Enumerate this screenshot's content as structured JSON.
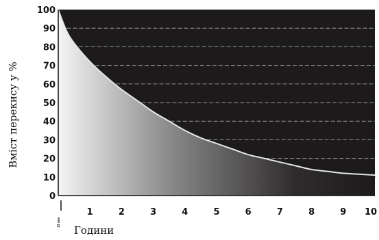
{
  "chart_data": {
    "type": "area",
    "ylabel": "Вміст перекису у %",
    "xlabel": "Години",
    "x_ticks": [
      "1",
      "2",
      "3",
      "4",
      "5",
      "6",
      "7",
      "8",
      "9",
      "10"
    ],
    "x_start_label": "15 min",
    "y_ticks": [
      "0",
      "10",
      "20",
      "30",
      "40",
      "50",
      "60",
      "70",
      "80",
      "90",
      "100"
    ],
    "xlim": [
      0,
      10
    ],
    "ylim": [
      0,
      100
    ],
    "grid": "horizontal dashed",
    "colors": {
      "background": "#1c1a1b",
      "gridline": "#9a9a9a",
      "curve": "#e6e6e6"
    },
    "series": [
      {
        "x": [
          0,
          0.25,
          0.5,
          1,
          1.5,
          2,
          2.5,
          3,
          3.5,
          4,
          4.5,
          5,
          5.5,
          6,
          6.5,
          7,
          7.5,
          8,
          8.5,
          9,
          9.5,
          10
        ],
        "values": [
          100,
          89,
          82,
          72,
          64,
          57,
          51,
          45,
          40,
          35,
          31,
          28,
          25,
          22,
          20,
          18,
          16,
          14,
          13,
          12,
          11.5,
          11
        ]
      }
    ]
  }
}
